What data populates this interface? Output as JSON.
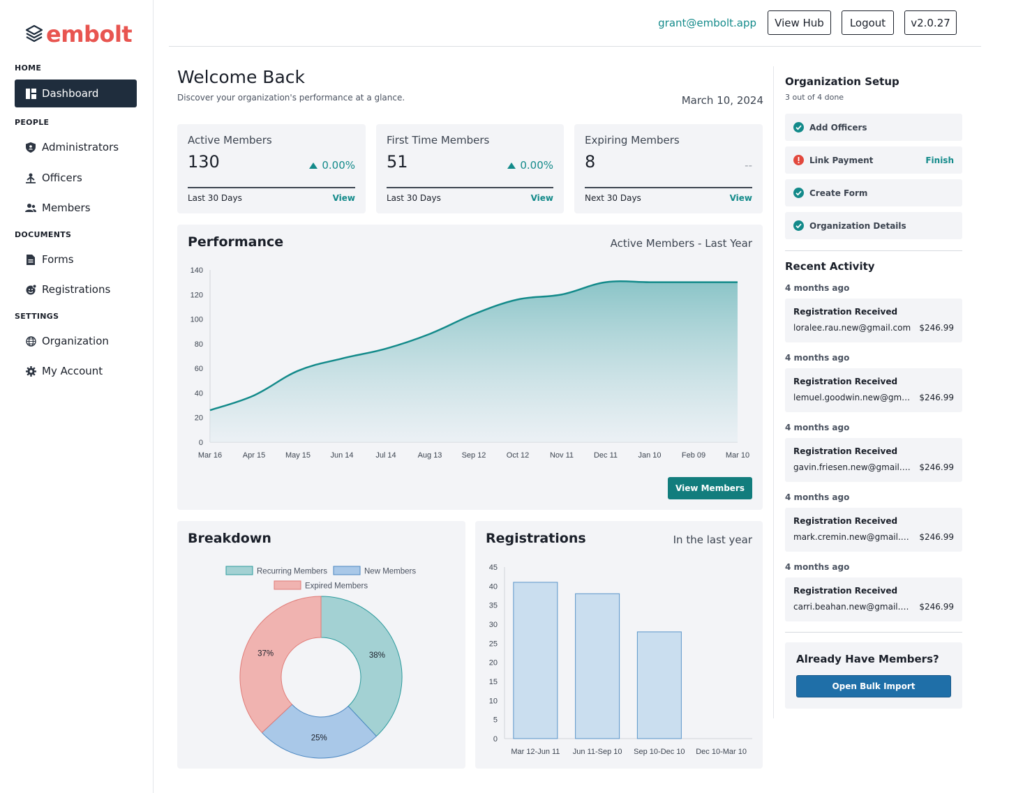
{
  "brand": {
    "name": "embolt"
  },
  "sidebar": {
    "sections": [
      {
        "label": "HOME"
      },
      {
        "label": "PEOPLE"
      },
      {
        "label": "DOCUMENTS"
      },
      {
        "label": "SETTINGS"
      }
    ],
    "items": [
      {
        "label": "Dashboard",
        "icon": "dashboard-icon"
      },
      {
        "label": "Administrators",
        "icon": "shield-icon"
      },
      {
        "label": "Officers",
        "icon": "officer-icon"
      },
      {
        "label": "Members",
        "icon": "members-icon"
      },
      {
        "label": "Forms",
        "icon": "document-icon"
      },
      {
        "label": "Registrations",
        "icon": "registration-icon"
      },
      {
        "label": "Organization",
        "icon": "globe-icon"
      },
      {
        "label": "My Account",
        "icon": "gear-icon"
      }
    ]
  },
  "topbar": {
    "email": "grant@embolt.app",
    "view_hub": "View Hub",
    "logout": "Logout",
    "version": "v2.0.27"
  },
  "welcome": {
    "title": "Welcome Back",
    "subtitle": "Discover your organization's performance at a glance.",
    "date": "March 10, 2024"
  },
  "stats": [
    {
      "title": "Active Members",
      "value": "130",
      "change": "0.00%",
      "period": "Last 30 Days",
      "link": "View"
    },
    {
      "title": "First Time Members",
      "value": "51",
      "change": "0.00%",
      "period": "Last 30 Days",
      "link": "View"
    },
    {
      "title": "Expiring Members",
      "value": "8",
      "change": "--",
      "period": "Next 30 Days",
      "link": "View"
    }
  ],
  "performance": {
    "title": "Performance",
    "subtitle": "Active Members - Last Year",
    "button": "View Members"
  },
  "breakdown": {
    "title": "Breakdown"
  },
  "registrations": {
    "title": "Registrations",
    "subtitle": "In the last year"
  },
  "chart_data": [
    {
      "type": "area",
      "title": "Active Members - Last Year",
      "x": [
        "Mar 16",
        "Apr 15",
        "May 15",
        "Jun 14",
        "Jul 14",
        "Aug 13",
        "Sep 12",
        "Oct 12",
        "Nov 11",
        "Dec 11",
        "Jan 10",
        "Feb 09",
        "Mar 10"
      ],
      "values": [
        26,
        38,
        58,
        68,
        76,
        88,
        104,
        116,
        120,
        130,
        130,
        130,
        130
      ],
      "yticks": [
        0,
        20,
        40,
        60,
        80,
        100,
        120,
        140
      ],
      "ylim": [
        0,
        140
      ],
      "color": "#138a8a"
    },
    {
      "type": "pie",
      "title": "Breakdown",
      "labels": [
        "Recurring Members",
        "New Members",
        "Expired Members"
      ],
      "values": [
        38,
        25,
        37
      ],
      "display": [
        "38%",
        "25%",
        "37%"
      ],
      "colors": [
        "#a3d1d3",
        "#a9c8e8",
        "#f0b3b0"
      ],
      "borders": [
        "#2b9a9c",
        "#4a86c0",
        "#e07a76"
      ]
    },
    {
      "type": "bar",
      "title": "Registrations",
      "categories": [
        "Mar 12-Jun 11",
        "Jun 11-Sep 10",
        "Sep 10-Dec 10",
        "Dec 10-Mar 10"
      ],
      "values": [
        41,
        38,
        28,
        0
      ],
      "yticks": [
        0,
        5,
        10,
        15,
        20,
        25,
        30,
        35,
        40,
        45
      ],
      "ylim": [
        0,
        45
      ],
      "color": "#cadeef",
      "border": "#5a95c9"
    }
  ],
  "org_setup": {
    "title": "Organization Setup",
    "progress": "3 out of 4 done",
    "tasks": [
      {
        "label": "Add Officers",
        "status": "done"
      },
      {
        "label": "Link Payment",
        "status": "pending",
        "action": "Finish"
      },
      {
        "label": "Create Form",
        "status": "done"
      },
      {
        "label": "Organization Details",
        "status": "done"
      }
    ]
  },
  "recent_activity": {
    "title": "Recent Activity",
    "items": [
      {
        "ago": "4 months ago",
        "title": "Registration Received",
        "email": "loralee.rau.new@gmail.com",
        "amount": "$246.99"
      },
      {
        "ago": "4 months ago",
        "title": "Registration Received",
        "email": "lemuel.goodwin.new@gmail.com",
        "amount": "$246.99"
      },
      {
        "ago": "4 months ago",
        "title": "Registration Received",
        "email": "gavin.friesen.new@gmail.com",
        "amount": "$246.99"
      },
      {
        "ago": "4 months ago",
        "title": "Registration Received",
        "email": "mark.cremin.new@gmail.com",
        "amount": "$246.99"
      },
      {
        "ago": "4 months ago",
        "title": "Registration Received",
        "email": "carri.beahan.new@gmail.com",
        "amount": "$246.99"
      }
    ]
  },
  "import": {
    "title": "Already Have Members?",
    "button": "Open Bulk Import"
  }
}
